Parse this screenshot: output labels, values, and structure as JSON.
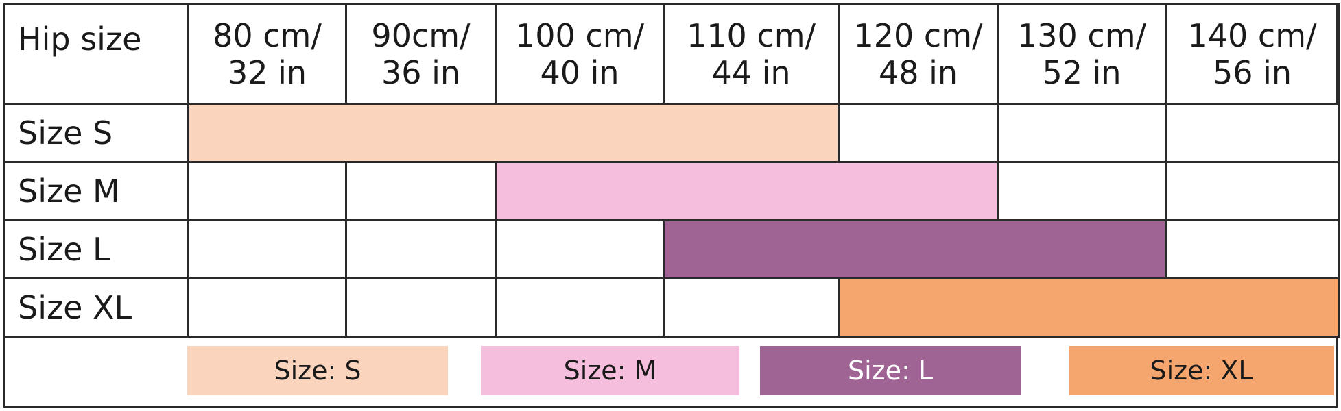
{
  "chart_data": {
    "type": "table",
    "corner_label": "Hip size",
    "columns": [
      {
        "line1": "80 cm/",
        "line2": "32 in"
      },
      {
        "line1": "90cm/",
        "line2": "36 in"
      },
      {
        "line1": "100 cm/",
        "line2": "40 in"
      },
      {
        "line1": "110 cm/",
        "line2": "44 in"
      },
      {
        "line1": "120 cm/",
        "line2": "48 in"
      },
      {
        "line1": "130 cm/",
        "line2": "52 in"
      },
      {
        "line1": "140 cm/",
        "line2": "56 in"
      }
    ],
    "rows": [
      {
        "label": "Size S",
        "key": "S",
        "color": "#FBD4BE",
        "covers": [
          true,
          true,
          true,
          true,
          false,
          false,
          false
        ]
      },
      {
        "label": "Size M",
        "key": "M",
        "color": "#F4BEDC",
        "covers": [
          false,
          false,
          true,
          true,
          true,
          false,
          false
        ]
      },
      {
        "label": "Size L",
        "key": "L",
        "color": "#A06494",
        "covers": [
          false,
          false,
          false,
          true,
          true,
          true,
          false
        ]
      },
      {
        "label": "Size XL",
        "key": "XL",
        "color": "#F5A66E",
        "covers": [
          false,
          false,
          false,
          false,
          true,
          true,
          true
        ]
      }
    ],
    "legend": [
      {
        "label": "Size: S",
        "color": "#FBD4BE",
        "text_color": "#1a1a1a"
      },
      {
        "label": "Size: M",
        "color": "#F4BEDC",
        "text_color": "#1a1a1a"
      },
      {
        "label": "Size: L",
        "color": "#A06494",
        "text_color": "#ffffff"
      },
      {
        "label": "Size: XL",
        "color": "#F5A66E",
        "text_color": "#1a1a1a"
      }
    ]
  }
}
